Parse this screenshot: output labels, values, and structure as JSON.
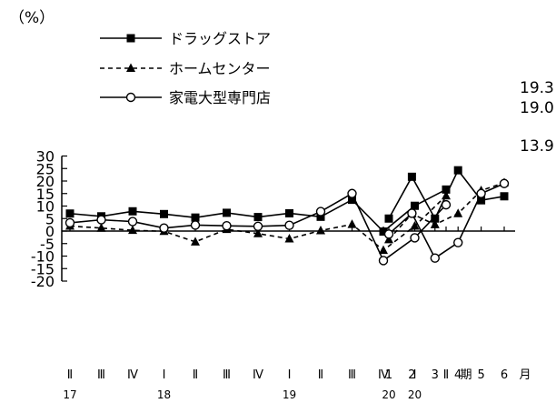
{
  "chart_data": {
    "type": "line",
    "y_unit_label": "（%）",
    "ylim": [
      -20,
      30
    ],
    "y_ticks": [
      30,
      25,
      20,
      15,
      10,
      5,
      0,
      -5,
      -10,
      -15,
      -20
    ],
    "grid": false,
    "legend_position": "top-left",
    "quarterly": {
      "x": [
        "Ⅱ",
        "Ⅲ",
        "Ⅳ",
        "Ⅰ",
        "Ⅱ",
        "Ⅲ",
        "Ⅳ",
        "Ⅰ",
        "Ⅱ",
        "Ⅲ",
        "Ⅳ",
        "Ⅰ",
        "Ⅱ"
      ],
      "period_label": "期",
      "year_labels": [
        {
          "text": "17",
          "index": 0
        },
        {
          "text": "18",
          "index": 3
        },
        {
          "text": "19",
          "index": 7
        },
        {
          "text": "20",
          "index": 11
        }
      ]
    },
    "monthly": {
      "x": [
        "1",
        "2",
        "3",
        "4",
        "5",
        "6"
      ],
      "period_label": "月",
      "year_labels": [
        {
          "text": "20",
          "index": 0
        }
      ]
    },
    "series": [
      {
        "name": "ドラッグストア",
        "marker": "square",
        "line": "solid",
        "quarterly": [
          7.0,
          5.9,
          7.9,
          6.8,
          5.4,
          7.3,
          5.6,
          7.1,
          5.7,
          12.5,
          -0.2,
          10.1,
          16.6
        ],
        "monthly": [
          5.0,
          21.7,
          5.0,
          24.3,
          12.3,
          13.9
        ],
        "end_label": "13.9"
      },
      {
        "name": "ホームセンター",
        "marker": "triangle",
        "line": "dashed",
        "quarterly": [
          2.0,
          1.2,
          0.3,
          -0.1,
          -4.3,
          0.7,
          -1.0,
          -3.1,
          0.2,
          2.7,
          -7.7,
          2.0,
          14.1
        ],
        "monthly": [
          -3.4,
          6.9,
          2.6,
          7.0,
          16.2,
          19.3
        ],
        "end_label": "19.3"
      },
      {
        "name": "家電大型専門店",
        "marker": "circle-open",
        "line": "solid",
        "quarterly": [
          3.3,
          4.5,
          3.8,
          1.2,
          2.4,
          2.1,
          1.9,
          2.3,
          7.8,
          15.0,
          -11.8,
          -2.7,
          10.5
        ],
        "monthly": [
          -1.2,
          7.1,
          -10.8,
          -4.6,
          15.0,
          19.0
        ],
        "end_label": "19.0"
      }
    ],
    "colors": {
      "line": "#000000",
      "background": "#ffffff"
    }
  }
}
